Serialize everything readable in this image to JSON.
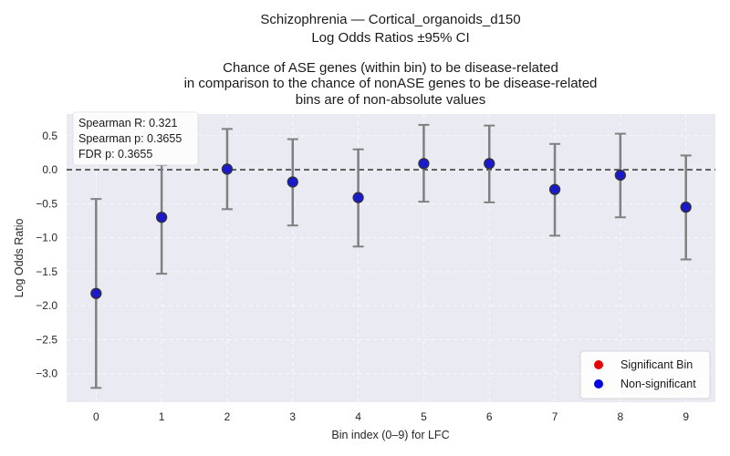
{
  "chart_data": {
    "type": "scatter",
    "title_lines": [
      "Schizophrenia — Cortical_organoids_d150",
      "Log Odds Ratios ±95% CI",
      "",
      "Chance of ASE genes (within bin) to be disease-related",
      "in comparison to the chance of nonASE genes to be disease-related",
      "bins are of non-absolute values"
    ],
    "xlabel": "Bin index (0–9) for LFC",
    "ylabel": "Log Odds Ratio",
    "xlim": [
      -0.45,
      9.45
    ],
    "ylim": [
      -3.42,
      0.82
    ],
    "x_ticks": [
      0,
      1,
      2,
      3,
      4,
      5,
      6,
      7,
      8,
      9
    ],
    "y_ticks": [
      -3.0,
      -2.5,
      -2.0,
      -1.5,
      -1.0,
      -0.5,
      0.0,
      0.5
    ],
    "y_tick_labels": [
      "−3.0",
      "−2.5",
      "−2.0",
      "−1.5",
      "−1.0",
      "−0.5",
      "0.0",
      "0.5"
    ],
    "reference_line": 0.0,
    "grid": true,
    "points": [
      {
        "x": 0,
        "y": -1.82,
        "lo": -3.21,
        "hi": -0.43,
        "significant": false
      },
      {
        "x": 1,
        "y": -0.7,
        "lo": -1.53,
        "hi": 0.07,
        "significant": false
      },
      {
        "x": 2,
        "y": 0.01,
        "lo": -0.58,
        "hi": 0.6,
        "significant": false
      },
      {
        "x": 3,
        "y": -0.18,
        "lo": -0.82,
        "hi": 0.45,
        "significant": false
      },
      {
        "x": 4,
        "y": -0.41,
        "lo": -1.13,
        "hi": 0.3,
        "significant": false
      },
      {
        "x": 5,
        "y": 0.09,
        "lo": -0.47,
        "hi": 0.66,
        "significant": false
      },
      {
        "x": 6,
        "y": 0.09,
        "lo": -0.48,
        "hi": 0.65,
        "significant": false
      },
      {
        "x": 7,
        "y": -0.29,
        "lo": -0.97,
        "hi": 0.38,
        "significant": false
      },
      {
        "x": 8,
        "y": -0.08,
        "lo": -0.7,
        "hi": 0.53,
        "significant": false
      },
      {
        "x": 9,
        "y": -0.55,
        "lo": -1.32,
        "hi": 0.21,
        "significant": false
      }
    ],
    "stats": {
      "spearman_r": "Spearman R: 0.321",
      "spearman_p": "Spearman p: 0.3655",
      "fdr_p": "FDR p: 0.3655"
    },
    "legend": {
      "placement": "bottom-right",
      "entries": [
        {
          "label": "Significant Bin",
          "color": "#e60000"
        },
        {
          "label": "Non-significant",
          "color": "#0000e6"
        }
      ]
    },
    "colors": {
      "plot_bg": "#eaeaf2",
      "grid": "#ffffff",
      "errorbar": "#808080",
      "marker_edge": "#333333",
      "nonsig": "#1a1acc",
      "sig": "#e60000",
      "refline": "#333333"
    }
  }
}
